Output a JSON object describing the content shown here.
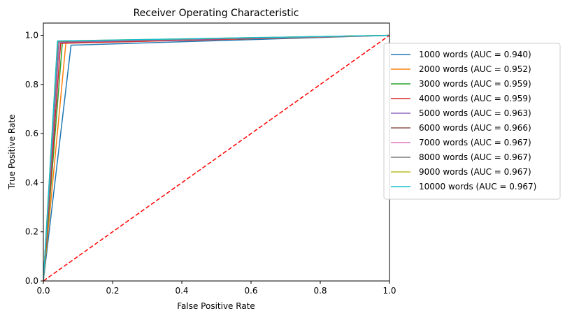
{
  "chart_data": {
    "type": "line",
    "title": "Receiver Operating Characteristic",
    "xlabel": "False Positive Rate",
    "ylabel": "True Positive Rate",
    "xlim": [
      0,
      1
    ],
    "ylim": [
      0,
      1.05
    ],
    "xticks": [
      "0.0",
      "0.2",
      "0.4",
      "0.6",
      "0.8",
      "1.0"
    ],
    "yticks": [
      "0.0",
      "0.2",
      "0.4",
      "0.6",
      "0.8",
      "1.0"
    ],
    "grid": false,
    "legend_position": "right (outside)",
    "series": [
      {
        "name": "1000 words (AUC = 0.940)",
        "color": "#1f77b4",
        "x": [
          0,
          0.08,
          1
        ],
        "y": [
          0,
          0.96,
          1
        ]
      },
      {
        "name": "2000 words (AUC = 0.952)",
        "color": "#ff7f0e",
        "x": [
          0,
          0.065,
          1
        ],
        "y": [
          0,
          0.968,
          1
        ]
      },
      {
        "name": "3000 words (AUC = 0.959)",
        "color": "#2ca02c",
        "x": [
          0,
          0.055,
          1
        ],
        "y": [
          0,
          0.972,
          1
        ]
      },
      {
        "name": "4000 words (AUC = 0.959)",
        "color": "#d62728",
        "x": [
          0,
          0.05,
          1
        ],
        "y": [
          0,
          0.968,
          1
        ]
      },
      {
        "name": "5000 words (AUC = 0.963)",
        "color": "#9467bd",
        "x": [
          0,
          0.046,
          1
        ],
        "y": [
          0,
          0.972,
          1
        ]
      },
      {
        "name": "6000 words (AUC = 0.966)",
        "color": "#8c564b",
        "x": [
          0,
          0.043,
          1
        ],
        "y": [
          0,
          0.975,
          1
        ]
      },
      {
        "name": "7000 words (AUC = 0.967)",
        "color": "#e377c2",
        "x": [
          0,
          0.042,
          1
        ],
        "y": [
          0,
          0.976,
          1
        ]
      },
      {
        "name": "8000 words (AUC = 0.967)",
        "color": "#7f7f7f",
        "x": [
          0,
          0.042,
          1
        ],
        "y": [
          0,
          0.976,
          1
        ]
      },
      {
        "name": "9000 words (AUC = 0.967)",
        "color": "#bcbd22",
        "x": [
          0,
          0.041,
          1
        ],
        "y": [
          0,
          0.977,
          1
        ]
      },
      {
        "name": "10000 words (AUC = 0.967)",
        "color": "#17becf",
        "x": [
          0,
          0.041,
          1
        ],
        "y": [
          0,
          0.977,
          1
        ]
      }
    ],
    "reference_line": {
      "color": "#ff0000",
      "style": "dashed",
      "x": [
        0,
        1
      ],
      "y": [
        0,
        1
      ]
    }
  }
}
